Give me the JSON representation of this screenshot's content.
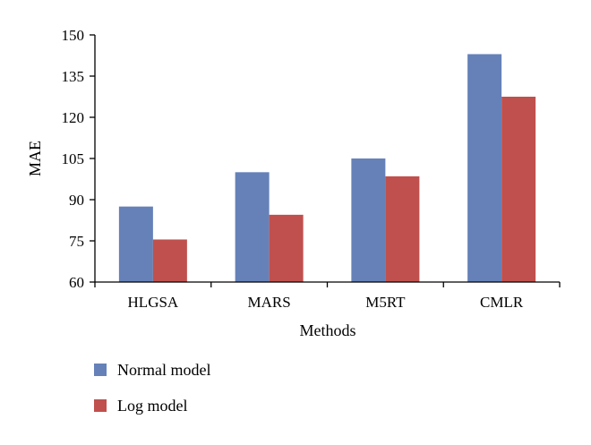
{
  "chart_data": {
    "type": "bar",
    "categories": [
      "HLGSA",
      "MARS",
      "M5RT",
      "CMLR"
    ],
    "series": [
      {
        "name": "Normal model",
        "values": [
          87.5,
          100,
          105,
          143
        ],
        "color": "#6581b8"
      },
      {
        "name": "Log model",
        "values": [
          75.5,
          84.5,
          98.5,
          127.5
        ],
        "color": "#c0504d"
      }
    ],
    "title": "",
    "xlabel": "Methods",
    "ylabel": "MAE",
    "ylim": [
      60,
      150
    ],
    "yticks": [
      60,
      75,
      90,
      105,
      120,
      135,
      150
    ],
    "grid": false,
    "legend_position": "bottom-left"
  }
}
